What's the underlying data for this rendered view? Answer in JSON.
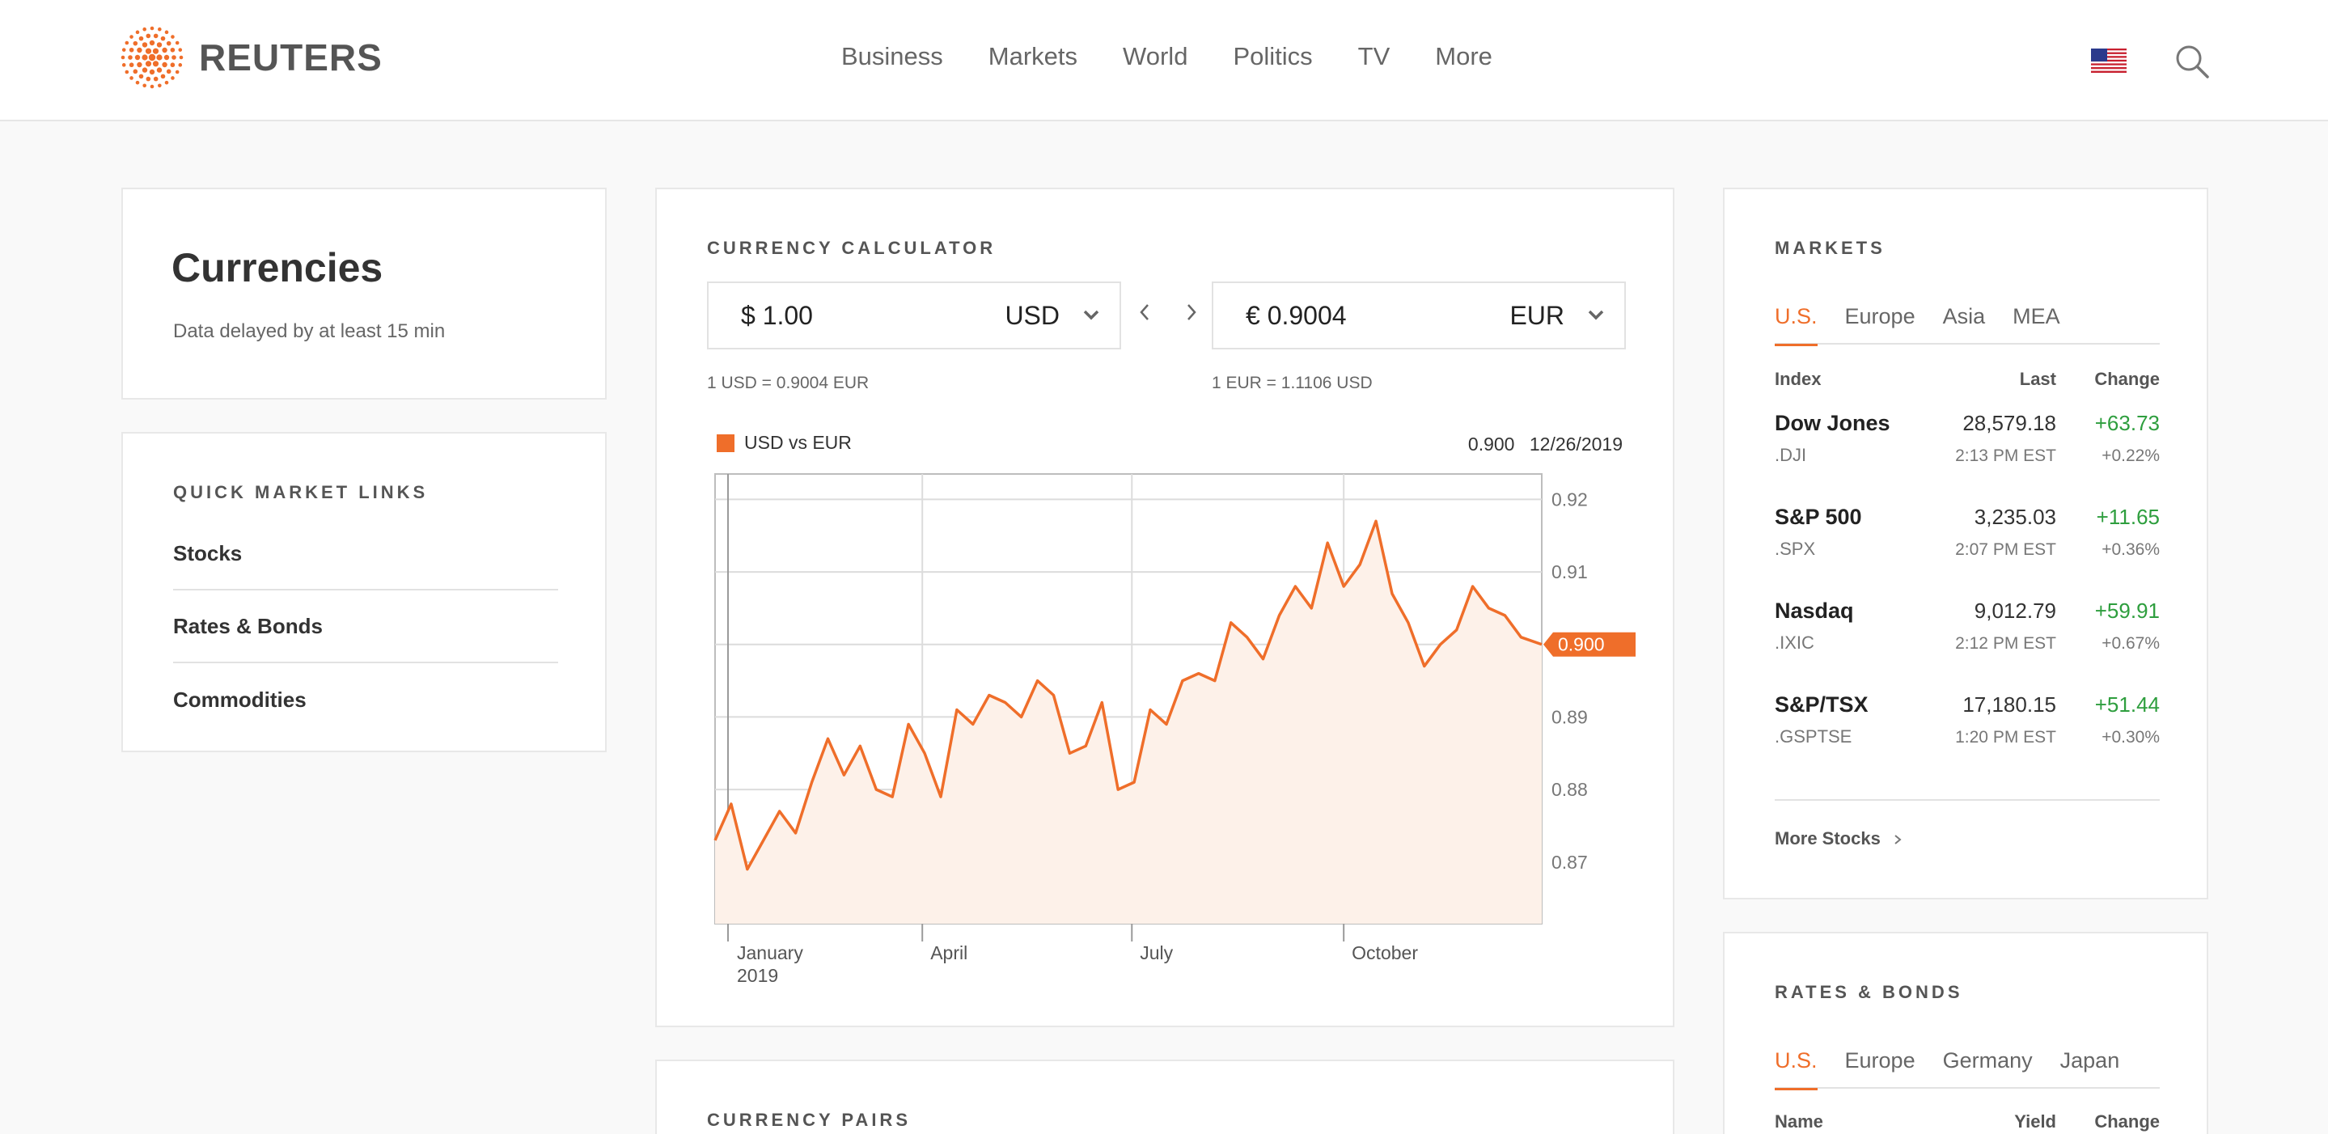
{
  "header": {
    "logo_text": "REUTERS",
    "nav": [
      "Business",
      "Markets",
      "World",
      "Politics",
      "TV",
      "More"
    ]
  },
  "colors": {
    "accent": "#ef6e2a",
    "positive": "#2e9e3e",
    "page_bg": "#f9f9f9"
  },
  "icons": {
    "flag": "us-flag-icon",
    "search": "search-icon",
    "caret": "chevron-down-icon"
  },
  "sidebar": {
    "title": "Currencies",
    "subtitle": "Data delayed by at least 15 min",
    "quick_links_title": "QUICK MARKET LINKS",
    "quick_links": [
      "Stocks",
      "Rates & Bonds",
      "Commodities"
    ]
  },
  "calculator": {
    "title": "CURRENCY CALCULATOR",
    "from": {
      "amount": "$ 1.00",
      "code": "USD"
    },
    "to": {
      "amount": "€ 0.9004",
      "code": "EUR"
    },
    "rate_from": "1 USD = 0.9004 EUR",
    "rate_to": "1 EUR = 1.1106 USD"
  },
  "chart": {
    "legend": "USD vs EUR",
    "readout_value": "0.900",
    "readout_date": "12/26/2019",
    "current_label": "0.900"
  },
  "chart_data": {
    "type": "area",
    "title": "",
    "series": [
      {
        "name": "USD vs EUR",
        "x": [
          "2019-01-01",
          "2019-01-08",
          "2019-01-15",
          "2019-01-22",
          "2019-01-29",
          "2019-02-05",
          "2019-02-12",
          "2019-02-19",
          "2019-02-26",
          "2019-03-05",
          "2019-03-12",
          "2019-03-19",
          "2019-03-26",
          "2019-04-02",
          "2019-04-09",
          "2019-04-16",
          "2019-04-23",
          "2019-04-30",
          "2019-05-07",
          "2019-05-14",
          "2019-05-21",
          "2019-05-28",
          "2019-06-04",
          "2019-06-11",
          "2019-06-18",
          "2019-06-25",
          "2019-07-02",
          "2019-07-09",
          "2019-07-16",
          "2019-07-23",
          "2019-07-30",
          "2019-08-06",
          "2019-08-13",
          "2019-08-20",
          "2019-08-27",
          "2019-09-03",
          "2019-09-10",
          "2019-09-17",
          "2019-09-24",
          "2019-10-01",
          "2019-10-08",
          "2019-10-15",
          "2019-10-22",
          "2019-10-29",
          "2019-11-05",
          "2019-11-12",
          "2019-11-19",
          "2019-11-26",
          "2019-12-03",
          "2019-12-10",
          "2019-12-17",
          "2019-12-26"
        ],
        "values": [
          0.873,
          0.878,
          0.869,
          0.873,
          0.877,
          0.874,
          0.881,
          0.887,
          0.882,
          0.886,
          0.88,
          0.879,
          0.889,
          0.885,
          0.879,
          0.891,
          0.889,
          0.893,
          0.892,
          0.89,
          0.895,
          0.893,
          0.885,
          0.886,
          0.892,
          0.88,
          0.881,
          0.891,
          0.889,
          0.895,
          0.896,
          0.895,
          0.903,
          0.901,
          0.898,
          0.904,
          0.908,
          0.905,
          0.914,
          0.908,
          0.911,
          0.917,
          0.907,
          0.903,
          0.897,
          0.9,
          0.902,
          0.908,
          0.905,
          0.904,
          0.901,
          0.9
        ]
      }
    ],
    "x_tick_labels": [
      "January 2019",
      "April",
      "July",
      "October"
    ],
    "y_ticks": [
      0.87,
      0.88,
      0.89,
      0.9,
      0.91,
      0.92
    ],
    "y_tick_labels": [
      "0.87",
      "0.88",
      "0.89",
      "0.91",
      "0.92"
    ],
    "ylim": [
      0.8615,
      0.9235
    ],
    "xlim": [
      "2019-01-01",
      "2019-12-26"
    ],
    "grid": true
  },
  "markets": {
    "title": "MARKETS",
    "tabs": [
      "U.S.",
      "Europe",
      "Asia",
      "MEA"
    ],
    "headers": {
      "index": "Index",
      "last": "Last",
      "change": "Change"
    },
    "rows": [
      {
        "name": "Dow Jones",
        "ric": ".DJI",
        "last": "28,579.18",
        "time": "2:13 PM EST",
        "change": "+63.73",
        "pct": "+0.22%"
      },
      {
        "name": "S&P 500",
        "ric": ".SPX",
        "last": "3,235.03",
        "time": "2:07 PM EST",
        "change": "+11.65",
        "pct": "+0.36%"
      },
      {
        "name": "Nasdaq",
        "ric": ".IXIC",
        "last": "9,012.79",
        "time": "2:12 PM EST",
        "change": "+59.91",
        "pct": "+0.67%"
      },
      {
        "name": "S&P/TSX",
        "ric": ".GSPTSE",
        "last": "17,180.15",
        "time": "1:20 PM EST",
        "change": "+51.44",
        "pct": "+0.30%"
      }
    ],
    "more_link": "More Stocks"
  },
  "rates": {
    "title": "RATES & BONDS",
    "tabs": [
      "U.S.",
      "Europe",
      "Germany",
      "Japan"
    ],
    "headers": {
      "name": "Name",
      "yield": "Yield",
      "change": "Change"
    }
  },
  "pairs": {
    "title": "CURRENCY PAIRS"
  }
}
